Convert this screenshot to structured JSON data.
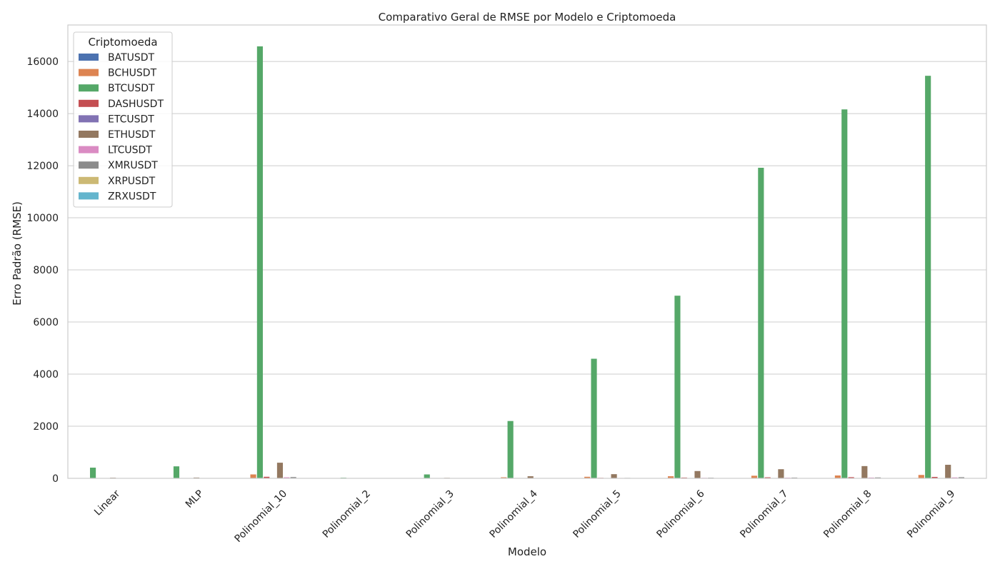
{
  "chart_data": {
    "type": "bar",
    "title": "Comparativo Geral de RMSE por Modelo e Criptomoeda",
    "xlabel": "Modelo",
    "ylabel": "Erro Padrão (RMSE)",
    "ylim": [
      0,
      17400
    ],
    "yticks": [
      0,
      2000,
      4000,
      6000,
      8000,
      10000,
      12000,
      14000,
      16000
    ],
    "grid": true,
    "legend": {
      "title": "Criptomoeda",
      "placement": "upper-left"
    },
    "categories": [
      "Linear",
      "MLP",
      "Polinomial_10",
      "Polinomial_2",
      "Polinomial_3",
      "Polinomial_4",
      "Polinomial_5",
      "Polinomial_6",
      "Polinomial_7",
      "Polinomial_8",
      "Polinomial_9"
    ],
    "series": [
      {
        "name": "BATUSDT",
        "color": "#4c72b0",
        "values": [
          0.02,
          0.03,
          1,
          0.02,
          0.02,
          0.1,
          0.2,
          0.3,
          0.4,
          0.5,
          0.8
        ]
      },
      {
        "name": "BCHUSDT",
        "color": "#dd8452",
        "values": [
          8,
          9,
          150,
          3,
          10,
          40,
          60,
          80,
          100,
          110,
          130
        ]
      },
      {
        "name": "BTCUSDT",
        "color": "#55a868",
        "values": [
          410,
          460,
          16580,
          25,
          150,
          2200,
          4590,
          7010,
          11920,
          14160,
          15450
        ]
      },
      {
        "name": "DASHUSDT",
        "color": "#c44e52",
        "values": [
          5,
          6,
          60,
          2,
          5,
          15,
          20,
          30,
          40,
          45,
          55
        ]
      },
      {
        "name": "ETCUSDT",
        "color": "#8172b3",
        "values": [
          1,
          1,
          8,
          0.5,
          1,
          3,
          4,
          5,
          6,
          7,
          8
        ]
      },
      {
        "name": "ETHUSDT",
        "color": "#937860",
        "values": [
          25,
          30,
          600,
          10,
          20,
          80,
          160,
          280,
          350,
          470,
          520
        ]
      },
      {
        "name": "LTCUSDT",
        "color": "#da8bc3",
        "values": [
          3,
          4,
          40,
          1,
          3,
          10,
          15,
          20,
          25,
          30,
          35
        ]
      },
      {
        "name": "XMRUSDT",
        "color": "#8c8c8c",
        "values": [
          5,
          6,
          50,
          2,
          5,
          12,
          18,
          25,
          30,
          35,
          45
        ]
      },
      {
        "name": "XRPUSDT",
        "color": "#ccb974",
        "values": [
          0.02,
          0.02,
          1,
          0.01,
          0.02,
          0.1,
          0.2,
          0.3,
          0.4,
          0.5,
          0.7
        ]
      },
      {
        "name": "ZRXUSDT",
        "color": "#64b5cd",
        "values": [
          0.02,
          0.02,
          1,
          0.01,
          0.02,
          0.1,
          0.2,
          0.3,
          0.4,
          0.5,
          0.7
        ]
      }
    ]
  }
}
